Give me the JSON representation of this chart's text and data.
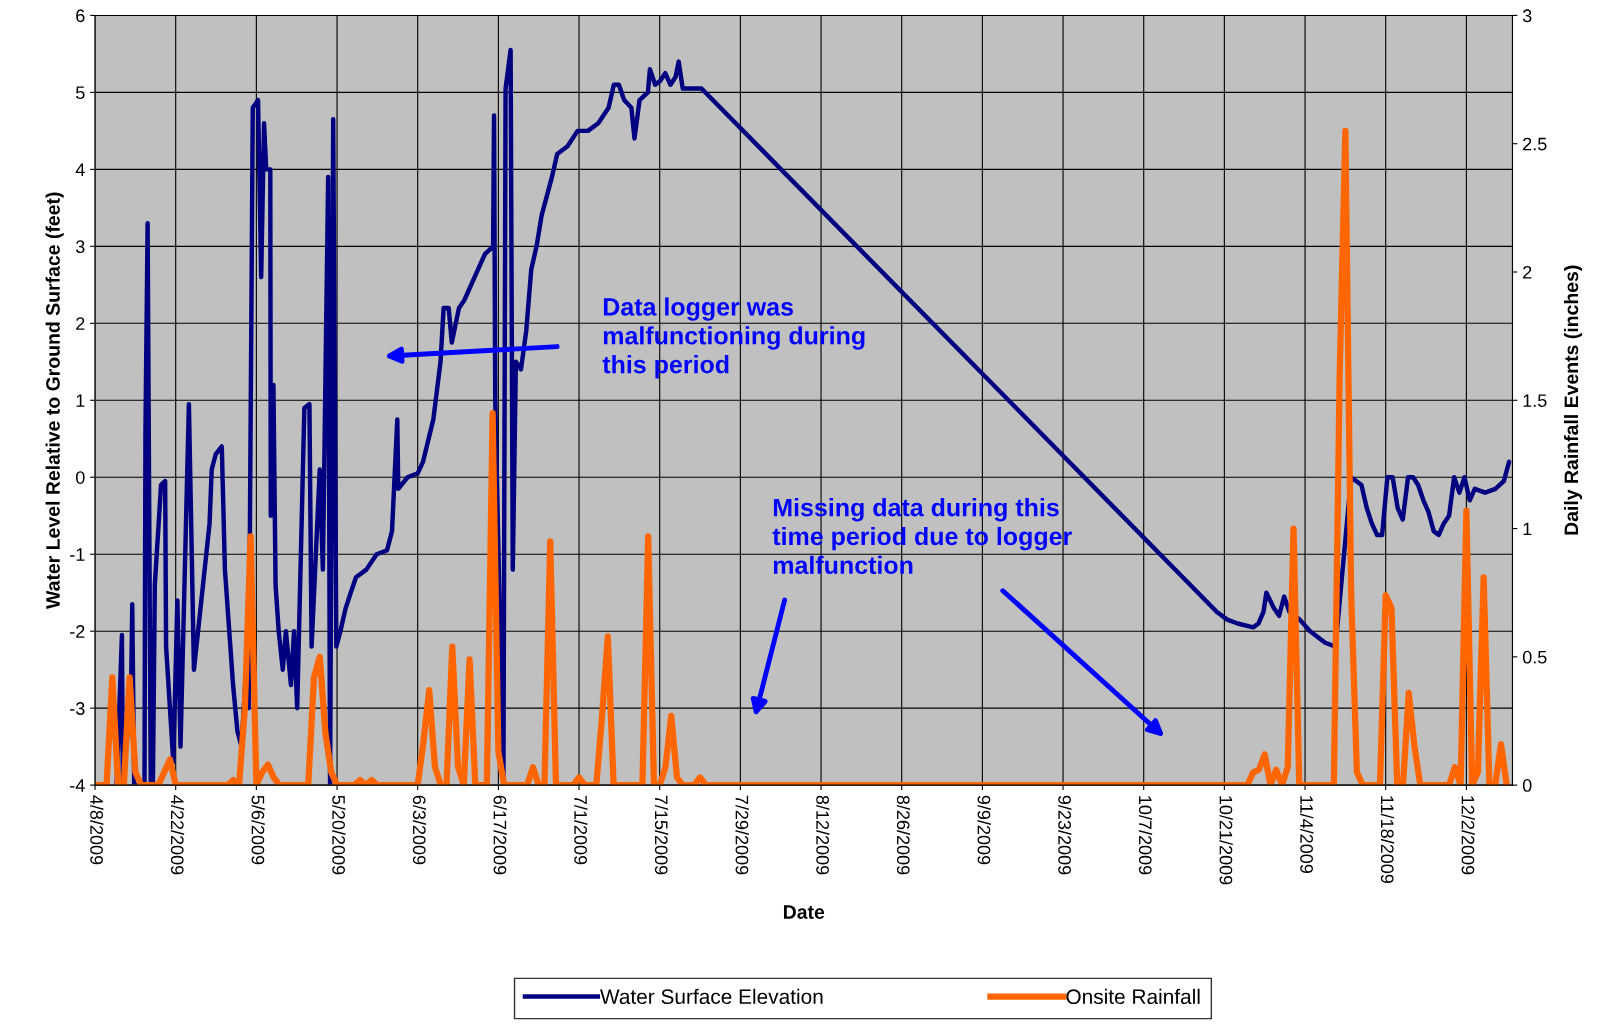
{
  "chart_data": {
    "type": "line",
    "xlabel": "Date",
    "ylabel": "Water Level Relative to Ground Surface (feet)",
    "y2label": "Daily Rainfall Events (inches)",
    "xlim": [
      "2009-04-08",
      "2009-12-10"
    ],
    "xticks": [
      {
        "value": "2009-04-08",
        "label": "4/8/2009"
      },
      {
        "value": "2009-04-22",
        "label": "4/22/2009"
      },
      {
        "value": "2009-05-06",
        "label": "5/6/2009"
      },
      {
        "value": "2009-05-20",
        "label": "5/20/2009"
      },
      {
        "value": "2009-06-03",
        "label": "6/3/2009"
      },
      {
        "value": "2009-06-17",
        "label": "6/17/2009"
      },
      {
        "value": "2009-07-01",
        "label": "7/1/2009"
      },
      {
        "value": "2009-07-15",
        "label": "7/15/2009"
      },
      {
        "value": "2009-07-29",
        "label": "7/29/2009"
      },
      {
        "value": "2009-08-12",
        "label": "8/12/2009"
      },
      {
        "value": "2009-08-26",
        "label": "8/26/2009"
      },
      {
        "value": "2009-09-09",
        "label": "9/9/2009"
      },
      {
        "value": "2009-09-23",
        "label": "9/23/2009"
      },
      {
        "value": "2009-10-07",
        "label": "10/7/2009"
      },
      {
        "value": "2009-10-21",
        "label": "10/21/2009"
      },
      {
        "value": "2009-11-04",
        "label": "11/4/2009"
      },
      {
        "value": "2009-11-18",
        "label": "11/18/2009"
      },
      {
        "value": "2009-12-02",
        "label": "12/2/2009"
      }
    ],
    "ylim": [
      -4,
      6
    ],
    "yticks": [
      -4,
      -3,
      -2,
      -1,
      0,
      1,
      2,
      3,
      4,
      5,
      6
    ],
    "y2lim": [
      0,
      3
    ],
    "y2ticks": [
      0,
      0.5,
      1,
      1.5,
      2,
      2.5,
      3
    ],
    "grid": true,
    "legend": "bottom",
    "marker": "none",
    "line_style": "solid",
    "annotations": [
      "Data logger was malfunctioning during this period",
      "Missing data during this time period due to logger malfunction"
    ],
    "series": [
      {
        "name": "Water Surface Elevation",
        "axis": "y",
        "color": "#000080",
        "x": [
          "2009-04-11T18:00",
          "2009-04-12T16:00",
          "2009-04-12T20:00",
          "2009-04-14T06:00",
          "2009-04-14T11:00",
          "2009-04-14T19:00",
          "2009-04-16T14:00",
          "2009-04-16T18:00",
          "2009-04-17T03:00",
          "2009-04-17T16:00",
          "2009-04-18T01:00",
          "2009-04-18T09:00",
          "2009-04-19T11:00",
          "2009-04-20T04:00",
          "2009-04-20T08:00",
          "2009-04-21T14:00",
          "2009-04-22T07:00",
          "2009-04-22T20:00",
          "2009-04-24T07:00",
          "2009-04-25T04:00",
          "2009-04-27T21:00",
          "2009-04-28T06:00",
          "2009-04-28T23:00",
          "2009-04-30T00:00",
          "2009-04-30T13:00",
          "2009-05-01T23:00",
          "2009-05-02T17:00",
          "2009-05-03T10:00",
          "2009-05-04T03:00",
          "2009-05-04T16:00",
          "2009-05-05T09:00",
          "2009-05-06T07:00",
          "2009-05-06T20:00",
          "2009-05-07T08:00",
          "2009-05-07T17:00",
          "2009-05-08T10:00",
          "2009-05-08T12:00",
          "2009-05-08T23:00",
          "2009-05-09T08:00",
          "2009-05-09T21:00",
          "2009-05-10T14:00",
          "2009-05-11T03:00",
          "2009-05-12T00:00",
          "2009-05-12T13:00",
          "2009-05-13T02:00",
          "2009-05-14T08:00",
          "2009-05-15T05:00",
          "2009-05-15T14:00",
          "2009-05-17T00:00",
          "2009-05-17T13:00",
          "2009-05-18T11:00",
          "2009-05-18T19:00",
          "2009-05-19T08:00",
          "2009-05-19T21:00",
          "2009-05-20T14:00",
          "2009-05-21T12:00",
          "2009-05-22T09:00",
          "2009-05-23T07:00",
          "2009-05-25T02:00",
          "2009-05-26T21:00",
          "2009-05-28T16:00",
          "2009-05-29T13:00",
          "2009-05-30T11:00",
          "2009-05-30T15:00",
          "2009-06-01T06:00",
          "2009-06-03T00:00",
          "2009-06-03T22:00",
          "2009-06-05T17:00",
          "2009-06-06T23:00",
          "2009-06-07T12:00",
          "2009-06-08T09:00",
          "2009-06-08T22:00",
          "2009-06-10T04:00",
          "2009-06-11T02:00",
          "2009-06-12T21:00",
          "2009-06-14T16:00",
          "2009-06-16T02:00",
          "2009-06-16T06:00",
          "2009-06-16T11:00",
          "2009-06-17T21:00",
          "2009-06-18T06:00",
          "2009-06-19T03:00",
          "2009-06-19T12:00",
          "2009-06-20T01:00",
          "2009-06-20T22:00",
          "2009-06-21T20:00",
          "2009-06-22T17:00",
          "2009-06-23T15:00",
          "2009-06-24T12:00",
          "2009-06-26T07:00",
          "2009-06-27T05:00",
          "2009-06-29T00:00",
          "2009-06-30T18:00",
          "2009-07-02T13:00",
          "2009-07-04T08:00",
          "2009-07-06T03:00",
          "2009-07-07T01:00",
          "2009-07-07T22:00",
          "2009-07-08T20:00",
          "2009-07-10T02:00",
          "2009-07-10T15:00",
          "2009-07-11T12:00",
          "2009-07-12T23:00",
          "2009-07-13T07:00",
          "2009-07-14T05:00",
          "2009-07-15T02:00",
          "2009-07-15T23:00",
          "2009-07-16T21:00",
          "2009-07-17T18:00",
          "2009-07-18T07:00",
          "2009-07-19T00:00",
          "2009-07-20T11:00",
          "2009-07-22T06:00",
          "2009-10-19T17:00",
          "2009-10-21T12:00",
          "2009-10-23T07:00",
          "2009-10-26T00:00",
          "2009-10-26T22:00",
          "2009-10-27T19:00",
          "2009-10-28T07:00",
          "2009-10-29T14:00",
          "2009-10-30T12:00",
          "2009-10-31T09:00",
          "2009-11-01T07:00",
          "2009-11-03T02:00",
          "2009-11-04T21:00",
          "2009-11-07T12:00",
          "2009-11-09T07:00",
          "2009-11-12T00:00",
          "2009-11-13T19:00",
          "2009-11-14T17:00",
          "2009-11-15T14:00",
          "2009-11-16T12:00",
          "2009-11-17T09:00",
          "2009-11-18T07:00",
          "2009-11-19T05:00",
          "2009-11-20T02:00",
          "2009-11-20T23:00",
          "2009-11-21T21:00",
          "2009-11-22T18:00",
          "2009-11-23T15:00",
          "2009-11-24T13:00",
          "2009-11-25T10:00",
          "2009-11-26T08:00",
          "2009-11-27T05:00",
          "2009-11-28T02:00",
          "2009-11-29T00:00",
          "2009-11-29T21:00",
          "2009-11-30T19:00",
          "2009-12-01T16:00",
          "2009-12-02T14:00",
          "2009-12-03T11:00",
          "2009-12-05T06:00",
          "2009-12-07T01:00",
          "2009-12-08T12:00",
          "2009-12-09T10:00"
        ],
        "values": [
          -4,
          -2.05,
          -4,
          -2.8,
          -1.65,
          -4,
          -4,
          0.6,
          3.3,
          -4,
          -4,
          -1.4,
          -0.1,
          -0.05,
          -2.2,
          -3.7,
          -1.6,
          -3.5,
          0.95,
          -2.5,
          -0.6,
          0.1,
          0.3,
          0.4,
          -1.2,
          -2.7,
          -3.3,
          -3.5,
          -2.6,
          -3.0,
          4.8,
          4.9,
          2.6,
          4.6,
          4.0,
          4.0,
          -0.5,
          1.2,
          -1.4,
          -2.0,
          -2.5,
          -2.0,
          -2.7,
          -2.0,
          -3.0,
          0.9,
          0.95,
          -2.2,
          0.1,
          -1.2,
          3.9,
          -4,
          4.65,
          -2.2,
          -2.0,
          -1.7,
          -1.5,
          -1.3,
          -1.2,
          -1.0,
          -0.95,
          -0.7,
          0.75,
          -0.15,
          0.0,
          0.05,
          0.2,
          0.75,
          1.5,
          2.2,
          2.2,
          1.75,
          2.2,
          2.3,
          2.6,
          2.9,
          3.0,
          4.7,
          1.0,
          -4,
          5.05,
          5.55,
          -1.2,
          1.5,
          1.4,
          1.9,
          2.7,
          3.0,
          3.4,
          3.9,
          4.2,
          4.3,
          4.5,
          4.5,
          4.6,
          4.8,
          5.1,
          5.1,
          4.9,
          4.8,
          4.4,
          4.9,
          5.0,
          5.3,
          5.1,
          5.15,
          5.25,
          5.1,
          5.2,
          5.4,
          5.05,
          5.05,
          5.05,
          -1.75,
          -1.85,
          -1.9,
          -1.95,
          -1.9,
          -1.75,
          -1.5,
          -1.7,
          -1.8,
          -1.55,
          -1.75,
          -1.85,
          -2.0,
          -2.15,
          -2.2,
          0.0,
          -0.1,
          -0.4,
          -0.6,
          -0.75,
          -0.75,
          0.0,
          0.0,
          -0.4,
          -0.55,
          0.0,
          0.0,
          -0.1,
          -0.3,
          -0.45,
          -0.7,
          -0.75,
          -0.6,
          -0.5,
          0.0,
          -0.2,
          0.0,
          -0.3,
          -0.15,
          -0.2,
          -0.15,
          -0.05,
          0.2
        ]
      },
      {
        "name": "Onsite Rainfall",
        "axis": "y2",
        "color": "#ff6600",
        "x": [
          "2009-04-08",
          "2009-04-10",
          "2009-04-11",
          "2009-04-12",
          "2009-04-13",
          "2009-04-14",
          "2009-04-15",
          "2009-04-16",
          "2009-04-19",
          "2009-04-20",
          "2009-04-21",
          "2009-04-22",
          "2009-05-01",
          "2009-05-02",
          "2009-05-03",
          "2009-05-04",
          "2009-05-05",
          "2009-05-06",
          "2009-05-07",
          "2009-05-08",
          "2009-05-09",
          "2009-05-10",
          "2009-05-15",
          "2009-05-16",
          "2009-05-17",
          "2009-05-18",
          "2009-05-19",
          "2009-05-20",
          "2009-05-23",
          "2009-05-24",
          "2009-05-25",
          "2009-05-26",
          "2009-05-27",
          "2009-06-03",
          "2009-06-04",
          "2009-06-05",
          "2009-06-06",
          "2009-06-07",
          "2009-06-08",
          "2009-06-09",
          "2009-06-10",
          "2009-06-11",
          "2009-06-12",
          "2009-06-13",
          "2009-06-15",
          "2009-06-16",
          "2009-06-17",
          "2009-06-18",
          "2009-06-22",
          "2009-06-23",
          "2009-06-24",
          "2009-06-25",
          "2009-06-26",
          "2009-06-27",
          "2009-06-30",
          "2009-07-01",
          "2009-07-02",
          "2009-07-04",
          "2009-07-05",
          "2009-07-06",
          "2009-07-07",
          "2009-07-12",
          "2009-07-13",
          "2009-07-14",
          "2009-07-15",
          "2009-07-16",
          "2009-07-17",
          "2009-07-18",
          "2009-07-19",
          "2009-07-21",
          "2009-07-22",
          "2009-07-23",
          "2009-10-25",
          "2009-10-26",
          "2009-10-27",
          "2009-10-28",
          "2009-10-29",
          "2009-10-30",
          "2009-10-31",
          "2009-11-01",
          "2009-11-02",
          "2009-11-03",
          "2009-11-09",
          "2009-11-10",
          "2009-11-11",
          "2009-11-12",
          "2009-11-13",
          "2009-11-14",
          "2009-11-17",
          "2009-11-18",
          "2009-11-19",
          "2009-11-20",
          "2009-11-21",
          "2009-11-22",
          "2009-11-23",
          "2009-11-24",
          "2009-11-29",
          "2009-11-30",
          "2009-12-01",
          "2009-12-02",
          "2009-12-03",
          "2009-12-04",
          "2009-12-05",
          "2009-12-06",
          "2009-12-07",
          "2009-12-08",
          "2009-12-09"
        ],
        "values": [
          0,
          0,
          0.42,
          0,
          0,
          0.42,
          0.05,
          0,
          0,
          0.05,
          0.1,
          0,
          0,
          0.02,
          0,
          0.3,
          0.97,
          0,
          0.05,
          0.08,
          0.03,
          0,
          0,
          0.42,
          0.5,
          0.2,
          0.05,
          0,
          0,
          0.02,
          0,
          0.02,
          0,
          0,
          0.17,
          0.37,
          0.07,
          0,
          0,
          0.54,
          0.07,
          0,
          0.49,
          0,
          0,
          1.45,
          0.13,
          0,
          0,
          0.07,
          0,
          0,
          0.95,
          0,
          0,
          0.03,
          0,
          0,
          0.27,
          0.58,
          0,
          0,
          0.97,
          0,
          0,
          0.07,
          0.27,
          0.03,
          0,
          0,
          0.03,
          0,
          0,
          0.05,
          0.06,
          0.12,
          0,
          0.06,
          0,
          0.07,
          1.0,
          0,
          0,
          1.59,
          2.55,
          0.75,
          0.05,
          0,
          0,
          0.74,
          0.69,
          0,
          0,
          0.36,
          0.15,
          0,
          0,
          0.07,
          0,
          1.07,
          0,
          0.05,
          0.81,
          0,
          0,
          0.16,
          0
        ]
      }
    ]
  }
}
